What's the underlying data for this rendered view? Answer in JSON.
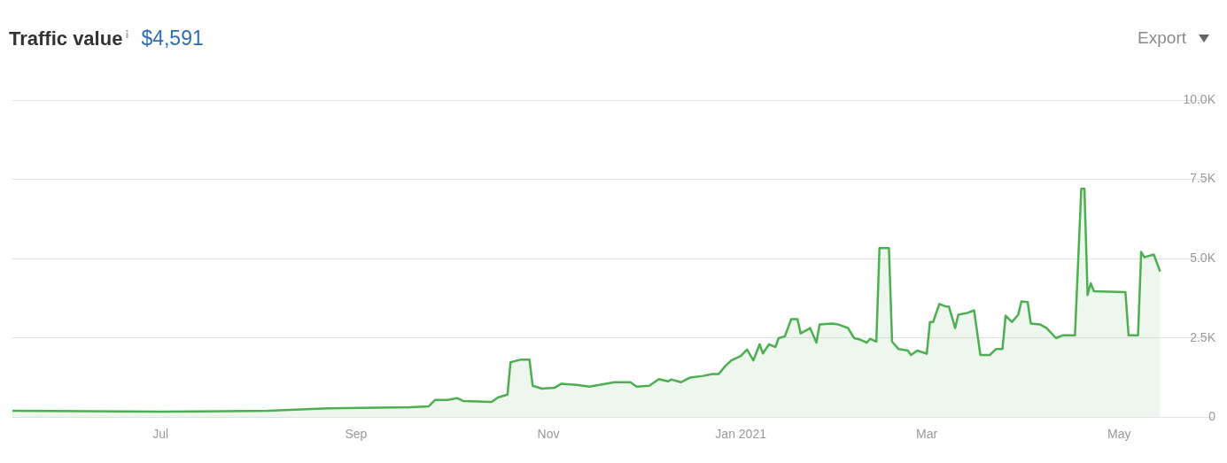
{
  "chart_data": {
    "type": "area",
    "title": "Traffic value",
    "subtitle": "$4,591",
    "annotations": [
      "Export"
    ],
    "x": [
      "2020-05-15",
      "2020-06-08",
      "2020-07-01",
      "2020-08-04",
      "2020-08-23",
      "2020-09-18",
      "2020-09-24",
      "2020-09-26",
      "2020-09-30",
      "2020-10-03",
      "2020-10-05",
      "2020-10-14",
      "2020-10-16",
      "2020-10-19",
      "2020-10-20",
      "2020-10-23",
      "2020-10-26",
      "2020-10-27",
      "2020-10-30",
      "2020-11-03",
      "2020-11-05",
      "2020-11-10",
      "2020-11-14",
      "2020-11-22",
      "2020-11-27",
      "2020-11-29",
      "2020-12-03",
      "2020-12-06",
      "2020-12-09",
      "2020-12-10",
      "2020-12-13",
      "2020-12-16",
      "2020-12-20",
      "2020-12-23",
      "2020-12-25",
      "2020-12-27",
      "2020-12-29",
      "2021-01-01",
      "2021-01-03",
      "2021-01-05",
      "2021-01-07",
      "2021-01-08",
      "2021-01-10",
      "2021-01-12",
      "2021-01-13",
      "2021-01-15",
      "2021-01-17",
      "2021-01-19",
      "2021-01-20",
      "2021-01-23",
      "2021-01-25",
      "2021-01-26",
      "2021-01-30",
      "2021-02-01",
      "2021-02-04",
      "2021-02-06",
      "2021-02-08",
      "2021-02-10",
      "2021-02-11",
      "2021-02-13",
      "2021-02-14",
      "2021-02-17",
      "2021-02-18",
      "2021-02-20",
      "2021-02-23",
      "2021-02-24",
      "2021-02-26",
      "2021-03-01",
      "2021-03-02",
      "2021-03-03",
      "2021-03-05",
      "2021-03-07",
      "2021-03-08",
      "2021-03-10",
      "2021-03-11",
      "2021-03-14",
      "2021-03-16",
      "2021-03-18",
      "2021-03-21",
      "2021-03-23",
      "2021-03-25",
      "2021-03-26",
      "2021-03-28",
      "2021-03-30",
      "2021-03-31",
      "2021-04-02",
      "2021-04-03",
      "2021-04-06",
      "2021-04-08",
      "2021-04-11",
      "2021-04-13",
      "2021-04-17",
      "2021-04-19",
      "2021-04-20",
      "2021-04-21",
      "2021-04-22",
      "2021-04-23",
      "2021-05-03",
      "2021-05-04",
      "2021-05-07",
      "2021-05-08",
      "2021-05-09",
      "2021-05-12",
      "2021-05-14"
    ],
    "values": [
      200,
      190,
      170,
      200,
      280,
      310,
      340,
      540,
      540,
      600,
      510,
      480,
      620,
      710,
      1730,
      1810,
      1810,
      990,
      900,
      930,
      1050,
      1020,
      960,
      1100,
      1100,
      960,
      990,
      1200,
      1130,
      1190,
      1100,
      1250,
      1300,
      1360,
      1360,
      1600,
      1790,
      1930,
      2130,
      1790,
      2300,
      2010,
      2300,
      2210,
      2490,
      2550,
      3090,
      3090,
      2640,
      2810,
      2350,
      2920,
      2950,
      2920,
      2810,
      2490,
      2440,
      2350,
      2470,
      2380,
      5330,
      5330,
      2380,
      2150,
      2100,
      1960,
      2100,
      2000,
      3000,
      3000,
      3570,
      3490,
      3490,
      2810,
      3230,
      3290,
      3370,
      1960,
      1960,
      2150,
      2150,
      3200,
      3000,
      3230,
      3650,
      3630,
      2950,
      2920,
      2810,
      2490,
      2580,
      2580,
      7200,
      7200,
      3850,
      4220,
      3970,
      3940,
      2580,
      2580,
      5210,
      5040,
      5130,
      4591
    ],
    "color": "#4caf50",
    "xlim": [
      "2020-05-15",
      "2021-05-31"
    ],
    "xticks": [
      {
        "value": "2020-07-01",
        "label": "Jul"
      },
      {
        "value": "2020-09-01",
        "label": "Sep"
      },
      {
        "value": "2020-11-01",
        "label": "Nov"
      },
      {
        "value": "2021-01-01",
        "label": "Jan 2021"
      },
      {
        "value": "2021-03-01",
        "label": "Mar"
      },
      {
        "value": "2021-05-01",
        "label": "May"
      }
    ],
    "ylim": [
      0,
      10000
    ],
    "yticks": [
      {
        "value": 0,
        "label": "0"
      },
      {
        "value": 2500,
        "label": "2.5K"
      },
      {
        "value": 5000,
        "label": "5.0K"
      },
      {
        "value": 7500,
        "label": "7.5K"
      },
      {
        "value": 10000,
        "label": "10.0K"
      }
    ],
    "grid": "y",
    "legend": false
  }
}
